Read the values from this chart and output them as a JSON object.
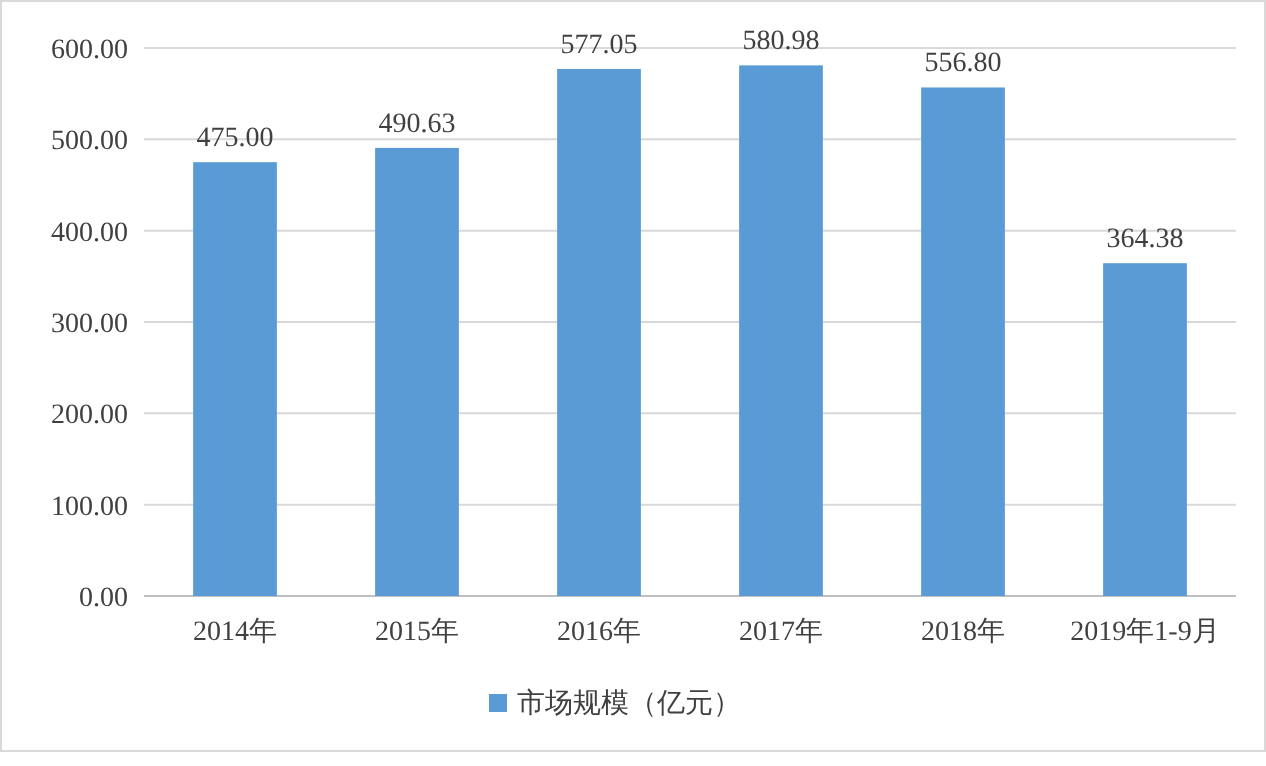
{
  "chart_data": {
    "type": "bar",
    "categories": [
      "2014年",
      "2015年",
      "2016年",
      "2017年",
      "2018年",
      "2019年1-9月"
    ],
    "series": [
      {
        "name": "市场规模（亿元）",
        "color": "#5b9bd5",
        "values": [
          475.0,
          490.63,
          577.05,
          580.98,
          556.8,
          364.38
        ],
        "value_labels": [
          "475.00",
          "490.63",
          "577.05",
          "580.98",
          "556.80",
          "364.38"
        ]
      }
    ],
    "ylim": [
      0,
      600
    ],
    "yticks": [
      {
        "value": 0,
        "label": "0.00"
      },
      {
        "value": 100,
        "label": "100.00"
      },
      {
        "value": 200,
        "label": "200.00"
      },
      {
        "value": 300,
        "label": "300.00"
      },
      {
        "value": 400,
        "label": "400.00"
      },
      {
        "value": 500,
        "label": "500.00"
      },
      {
        "value": 600,
        "label": "600.00"
      }
    ],
    "grid": "y",
    "legend": "bottom"
  }
}
